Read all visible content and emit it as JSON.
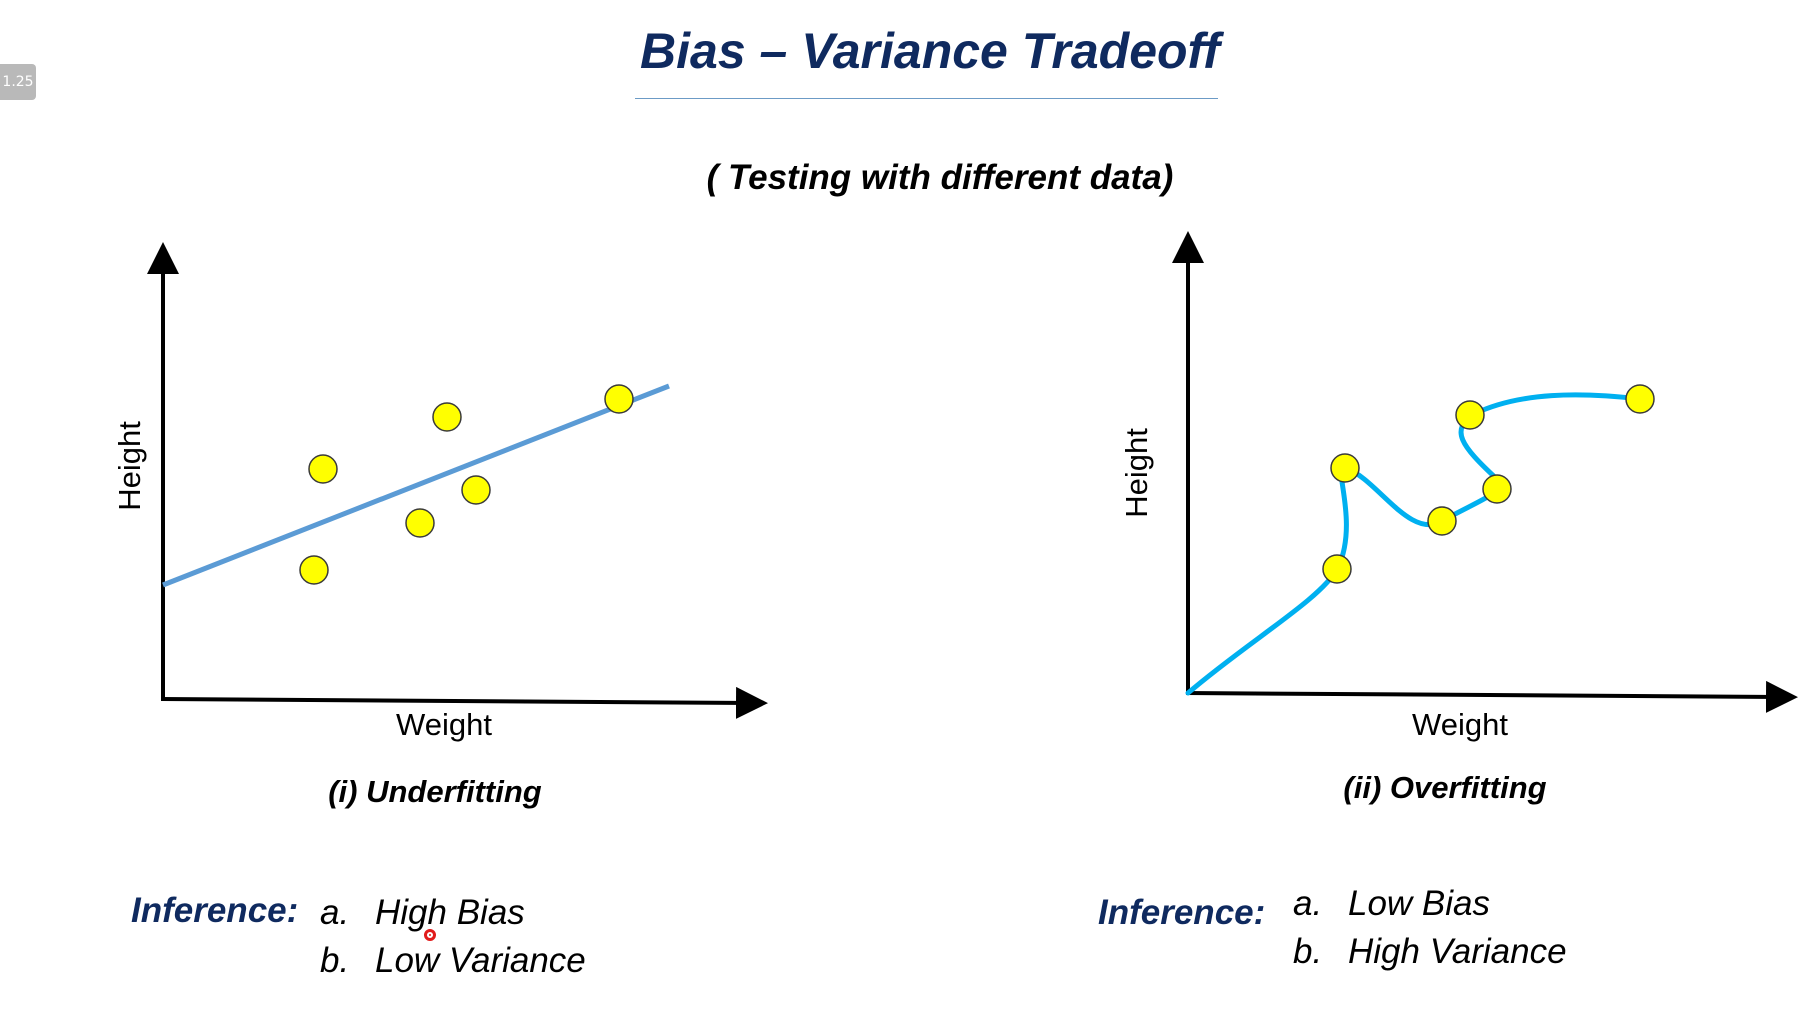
{
  "player": {
    "speed_badge": "1.25"
  },
  "slide": {
    "title": "Bias – Variance Tradeoff",
    "subtitle": "( Testing with different data)"
  },
  "colors": {
    "title": "#0f2a5f",
    "fit_line_left": "#5b9bd5",
    "fit_curve_right": "#00b0f0",
    "points": "#ffff00",
    "point_outline": "#3a3a3a"
  },
  "panels": [
    {
      "ylabel": "Height",
      "xlabel": "Weight",
      "caption": "(i) Underfitting",
      "inference_label": "Inference:",
      "inference_items": [
        {
          "letter": "a.",
          "text": "High Bias"
        },
        {
          "letter": "b.",
          "text": "Low Variance"
        }
      ]
    },
    {
      "ylabel": "Height",
      "xlabel": "Weight",
      "caption": "(ii) Overfitting",
      "inference_label": "Inference:",
      "inference_items": [
        {
          "letter": "a.",
          "text": "Low Bias"
        },
        {
          "letter": "b.",
          "text": "High Variance"
        }
      ]
    }
  ]
}
